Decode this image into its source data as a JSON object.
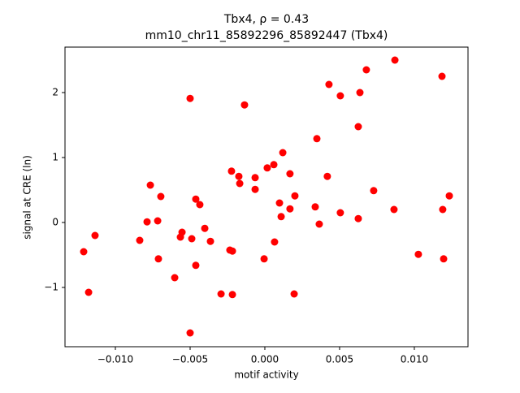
{
  "chart_data": {
    "type": "scatter",
    "title": [
      "Tbx4, ρ = 0.43",
      "mm10_chr11_85892296_85892447 (Tbx4)"
    ],
    "x_label": "motif activity",
    "y_label": "signal at CRE (ln)",
    "color": "#ff0000",
    "xlim": [
      -0.01337,
      0.01359
    ],
    "ylim": [
      -1.9125,
      2.7
    ],
    "xticks": [
      {
        "value": -0.01,
        "label": "−0.010"
      },
      {
        "value": -0.005,
        "label": "−0.005"
      },
      {
        "value": 0,
        "label": "0.000"
      },
      {
        "value": 0.005,
        "label": "0.005"
      },
      {
        "value": 0.01,
        "label": "0.010"
      }
    ],
    "yticks": [
      {
        "value": -1,
        "label": "−1"
      },
      0,
      1,
      2
    ],
    "x": [
      -0.01212,
      -0.01179,
      -0.01136,
      -0.00837,
      -0.00788,
      -0.00766,
      -0.00717,
      -0.00712,
      -0.00696,
      -0.00603,
      -0.00565,
      -0.00554,
      -0.005,
      -0.00489,
      -0.00462,
      -0.00462,
      -0.00435,
      -0.00402,
      -0.00364,
      -0.005,
      -0.00293,
      -0.00234,
      -0.00217,
      -0.00223,
      -0.00217,
      -0.00174,
      -0.00168,
      -0.00136,
      -0.00065,
      -0.00065,
      -5e-05,
      0.00016,
      0.0006,
      0.00065,
      0.00098,
      0.00109,
      0.0012,
      0.00168,
      0.00168,
      0.00196,
      0.00201,
      0.00337,
      0.00348,
      0.00364,
      0.00418,
      0.00429,
      0.00505,
      0.00505,
      0.00625,
      0.00625,
      0.00636,
      0.00679,
      0.00728,
      0.00864,
      0.0087,
      0.01027,
      0.01185,
      0.0119,
      0.01196,
      0.01234
    ],
    "values": [
      -0.45,
      -1.075,
      -0.2,
      -0.275,
      0.01,
      0.575,
      0.025,
      -0.56,
      0.4,
      -0.85,
      -0.225,
      -0.15,
      1.91,
      -0.25,
      0.36,
      -0.66,
      0.275,
      -0.09,
      -0.29,
      -1.7,
      -1.1,
      -0.425,
      -0.44,
      0.79,
      -1.11,
      0.71,
      0.6,
      1.81,
      0.69,
      0.51,
      -0.56,
      0.84,
      0.89,
      -0.3,
      0.3,
      0.09,
      1.075,
      0.75,
      0.21,
      -1.1,
      0.41,
      0.24,
      1.29,
      -0.025,
      0.71,
      2.125,
      1.95,
      0.15,
      0.06,
      1.475,
      2.0,
      2.35,
      0.49,
      0.2,
      2.5,
      -0.49,
      2.25,
      0.2,
      -0.56,
      0.41
    ]
  }
}
